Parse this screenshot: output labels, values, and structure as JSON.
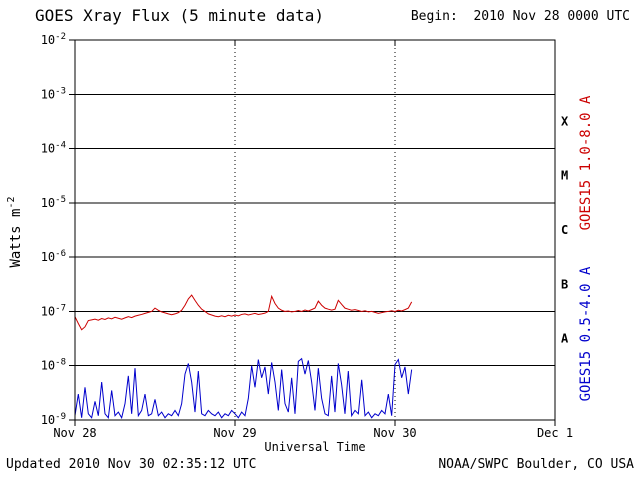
{
  "chart_data": {
    "type": "line",
    "title": "GOES Xray Flux (5 minute data)",
    "begin_label": "Begin:  2010 Nov 28 0000 UTC",
    "xlabel": "Universal Time",
    "ylabel_base": "Watts m",
    "ylabel_exp": "-2",
    "footer_left": "Updated 2010 Nov 30 02:35:12 UTC",
    "footer_right": "NOAA/SWPC Boulder, CO USA",
    "x_axis": {
      "span_hours": 72,
      "tick_labels": [
        "Nov 28",
        "Nov 29",
        "Nov 30",
        "Dec 1"
      ],
      "tick_hours": [
        0,
        24,
        48,
        72
      ],
      "day_line_hours": [
        24,
        48
      ]
    },
    "y_axis": {
      "scale": "log",
      "min": 1e-09,
      "max": 0.01,
      "tick_exponents": [
        -2,
        -3,
        -4,
        -5,
        -6,
        -7,
        -8,
        -9
      ]
    },
    "flux_classes": [
      {
        "label": "X",
        "center_exp": -3.5
      },
      {
        "label": "M",
        "center_exp": -4.5
      },
      {
        "label": "C",
        "center_exp": -5.5
      },
      {
        "label": "B",
        "center_exp": -6.5
      },
      {
        "label": "A",
        "center_exp": -7.5
      }
    ],
    "series": [
      {
        "name": "goes15-long",
        "label": "GOES15 1.0-8.0 A",
        "color": "#cc0000",
        "t_start_hours": 0,
        "t_step_hours": 0.5,
        "values": [
          8e-08,
          6e-08,
          4.6e-08,
          5.2e-08,
          6.8e-08,
          7e-08,
          7.2e-08,
          6.9e-08,
          7.4e-08,
          7.1e-08,
          7.6e-08,
          7.3e-08,
          7.8e-08,
          7.5e-08,
          7.2e-08,
          7.6e-08,
          8e-08,
          7.7e-08,
          8.2e-08,
          8.5e-08,
          8.8e-08,
          9.2e-08,
          9.6e-08,
          1e-07,
          1.15e-07,
          1.05e-07,
          9.8e-08,
          9.4e-08,
          9e-08,
          8.7e-08,
          9e-08,
          9.5e-08,
          1.05e-07,
          1.3e-07,
          1.7e-07,
          2e-07,
          1.6e-07,
          1.3e-07,
          1.1e-07,
          1e-07,
          9e-08,
          8.6e-08,
          8.2e-08,
          8e-08,
          8.3e-08,
          8e-08,
          8.5e-08,
          8.2e-08,
          8.6e-08,
          8.3e-08,
          8.8e-08,
          9e-08,
          8.6e-08,
          8.9e-08,
          9.2e-08,
          8.8e-08,
          9e-08,
          9.3e-08,
          1e-07,
          1.9e-07,
          1.4e-07,
          1.15e-07,
          1.05e-07,
          1e-07,
          1.02e-07,
          9.8e-08,
          1e-07,
          1.04e-07,
          1e-07,
          1.06e-07,
          1.02e-07,
          1.08e-07,
          1.15e-07,
          1.55e-07,
          1.3e-07,
          1.15e-07,
          1.1e-07,
          1.06e-07,
          1.1e-07,
          1.6e-07,
          1.35e-07,
          1.15e-07,
          1.1e-07,
          1.05e-07,
          1.08e-07,
          1.04e-07,
          1e-07,
          1.03e-07,
          9.8e-08,
          1e-07,
          9.6e-08,
          9.2e-08,
          9.5e-08,
          9.8e-08,
          1e-07,
          1.03e-07,
          1e-07,
          1.05e-07,
          1.02e-07,
          1.08e-07,
          1.15e-07,
          1.5e-07
        ]
      },
      {
        "name": "goes15-short",
        "label": "GOES15 0.5-4.0 A",
        "color": "#0000cc",
        "t_start_hours": 0,
        "t_step_hours": 0.5,
        "values": [
          1.2e-09,
          3e-09,
          1.1e-09,
          4e-09,
          1.3e-09,
          1.1e-09,
          2.2e-09,
          1.2e-09,
          5e-09,
          1.3e-09,
          1.1e-09,
          3.5e-09,
          1.2e-09,
          1.4e-09,
          1.1e-09,
          2e-09,
          6.5e-09,
          1.3e-09,
          9e-09,
          1.2e-09,
          1.5e-09,
          3e-09,
          1.2e-09,
          1.3e-09,
          2.4e-09,
          1.2e-09,
          1.4e-09,
          1.1e-09,
          1.3e-09,
          1.2e-09,
          1.5e-09,
          1.2e-09,
          2e-09,
          7e-09,
          1.1e-08,
          5e-09,
          1.4e-09,
          8e-09,
          1.3e-09,
          1.2e-09,
          1.5e-09,
          1.3e-09,
          1.2e-09,
          1.4e-09,
          1.1e-09,
          1.3e-09,
          1.2e-09,
          1.5e-09,
          1.3e-09,
          1.1e-09,
          1.4e-09,
          1.2e-09,
          2.5e-09,
          1e-08,
          4e-09,
          1.3e-08,
          6e-09,
          9.5e-09,
          3e-09,
          1.15e-08,
          5e-09,
          1.5e-09,
          8.5e-09,
          2e-09,
          1.4e-09,
          6e-09,
          1.3e-09,
          1.2e-08,
          1.35e-08,
          7e-09,
          1.25e-08,
          5e-09,
          1.5e-09,
          9e-09,
          2.5e-09,
          1.3e-09,
          1.2e-09,
          6.5e-09,
          1.4e-09,
          1.1e-08,
          4.5e-09,
          1.3e-09,
          8e-09,
          1.2e-09,
          1.5e-09,
          1.3e-09,
          5.5e-09,
          1.2e-09,
          1.4e-09,
          1.1e-09,
          1.3e-09,
          1.2e-09,
          1.5e-09,
          1.3e-09,
          3e-09,
          1.2e-09,
          1.05e-08,
          1.3e-08,
          6e-09,
          9.5e-09,
          3e-09,
          8.5e-09
        ]
      }
    ]
  }
}
